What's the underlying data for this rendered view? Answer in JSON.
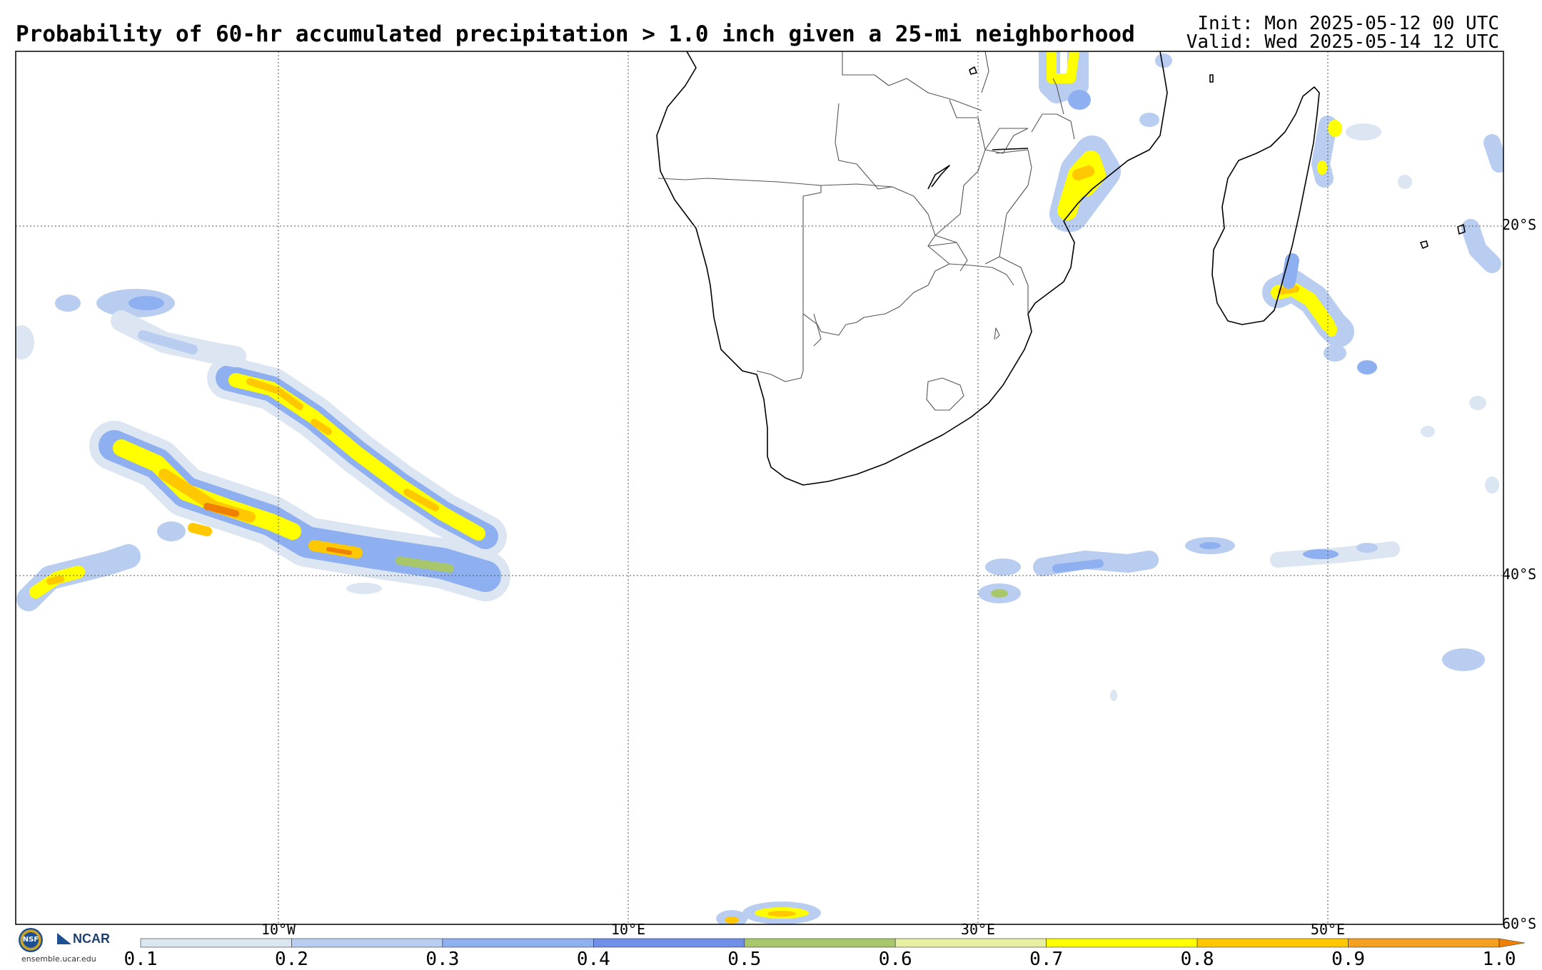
{
  "header": {
    "title": "Probability of 60-hr accumulated precipitation > 1.0 inch given a 25-mi neighborhood",
    "init": "Init: Mon 2025-05-12 00 UTC",
    "valid": "Valid: Wed 2025-05-14 12 UTC"
  },
  "map": {
    "lat_labels": [
      "20°S",
      "40°S",
      "60°S"
    ],
    "lon_labels": [
      "10°W",
      "10°E",
      "30°E",
      "50°E"
    ],
    "region": "Southern Africa and South Atlantic / Southwest Indian Ocean"
  },
  "colorbar": {
    "ticks": [
      "0.1",
      "0.2",
      "0.3",
      "0.4",
      "0.5",
      "0.6",
      "0.7",
      "0.8",
      "0.9",
      "1.0"
    ],
    "colors": [
      "#dce6f2",
      "#b8cdf0",
      "#8fb0f0",
      "#6f8fe8",
      "#a8c66a",
      "#e6f0a0",
      "#ffff00",
      "#ffc800",
      "#f5a020",
      "#f08000"
    ]
  },
  "logos": {
    "nsf": "NSF",
    "ncar": "NCAR",
    "url": "ensemble.ucar.edu"
  }
}
